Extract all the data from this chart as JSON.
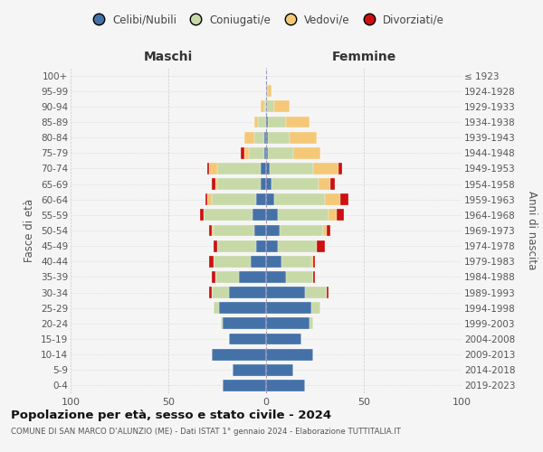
{
  "age_groups": [
    "0-4",
    "5-9",
    "10-14",
    "15-19",
    "20-24",
    "25-29",
    "30-34",
    "35-39",
    "40-44",
    "45-49",
    "50-54",
    "55-59",
    "60-64",
    "65-69",
    "70-74",
    "75-79",
    "80-84",
    "85-89",
    "90-94",
    "95-99",
    "100+"
  ],
  "birth_years": [
    "2019-2023",
    "2014-2018",
    "2009-2013",
    "2004-2008",
    "1999-2003",
    "1994-1998",
    "1989-1993",
    "1984-1988",
    "1979-1983",
    "1974-1978",
    "1969-1973",
    "1964-1968",
    "1959-1963",
    "1954-1958",
    "1949-1953",
    "1944-1948",
    "1939-1943",
    "1934-1938",
    "1929-1933",
    "1924-1928",
    "≤ 1923"
  ],
  "colors": {
    "celibi": "#4472a8",
    "coniugati": "#c8d9a8",
    "vedovi": "#f5c878",
    "divorziati": "#cc1111"
  },
  "maschi": {
    "celibi": [
      22,
      17,
      28,
      19,
      22,
      24,
      19,
      14,
      8,
      5,
      6,
      7,
      5,
      3,
      3,
      1,
      1,
      0,
      0,
      0,
      0
    ],
    "coniugati": [
      0,
      0,
      0,
      0,
      1,
      3,
      9,
      12,
      19,
      20,
      21,
      25,
      23,
      22,
      22,
      8,
      5,
      4,
      1,
      0,
      0
    ],
    "vedovi": [
      0,
      0,
      0,
      0,
      0,
      0,
      0,
      0,
      0,
      0,
      1,
      0,
      2,
      1,
      4,
      2,
      5,
      2,
      2,
      0,
      0
    ],
    "divorziati": [
      0,
      0,
      0,
      0,
      0,
      0,
      1,
      2,
      2,
      2,
      1,
      2,
      1,
      2,
      1,
      2,
      0,
      0,
      0,
      0,
      0
    ]
  },
  "femmine": {
    "celibi": [
      20,
      14,
      24,
      18,
      22,
      23,
      20,
      10,
      8,
      6,
      7,
      6,
      4,
      3,
      2,
      1,
      1,
      1,
      0,
      0,
      0
    ],
    "coniugati": [
      0,
      0,
      0,
      0,
      2,
      5,
      11,
      14,
      15,
      20,
      22,
      26,
      26,
      24,
      22,
      13,
      11,
      9,
      4,
      1,
      0
    ],
    "vedovi": [
      0,
      0,
      0,
      0,
      0,
      0,
      0,
      0,
      1,
      0,
      2,
      4,
      8,
      6,
      13,
      14,
      14,
      12,
      8,
      2,
      0
    ],
    "divorziati": [
      0,
      0,
      0,
      0,
      0,
      0,
      1,
      1,
      1,
      4,
      2,
      4,
      4,
      2,
      2,
      0,
      0,
      0,
      0,
      0,
      0
    ]
  },
  "title": "Popolazione per età, sesso e stato civile - 2024",
  "subtitle": "COMUNE DI SAN MARCO D’ALUNZIO (ME) - Dati ISTAT 1° gennaio 2024 - Elaborazione TUTTITALIA.IT",
  "xlabel_left": "Maschi",
  "xlabel_right": "Femmine",
  "ylabel_left": "Fasce di età",
  "ylabel_right": "Anni di nascita",
  "xlim": 100,
  "legend_labels": [
    "Celibi/Nubili",
    "Coniugati/e",
    "Vedovi/e",
    "Divorziati/e"
  ],
  "bg_color": "#f5f5f5",
  "grid_color": "#cccccc"
}
